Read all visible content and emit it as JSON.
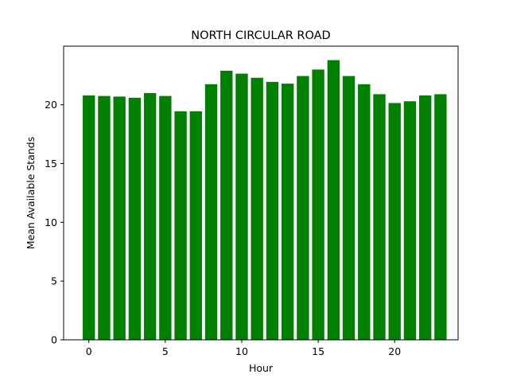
{
  "chart_data": {
    "type": "bar",
    "title": "NORTH CIRCULAR ROAD",
    "xlabel": "Hour",
    "ylabel": "Mean Available Stands",
    "categories": [
      0,
      1,
      2,
      3,
      4,
      5,
      6,
      7,
      8,
      9,
      10,
      11,
      12,
      13,
      14,
      15,
      16,
      17,
      18,
      19,
      20,
      21,
      22,
      23
    ],
    "values": [
      20.8,
      20.75,
      20.7,
      20.6,
      21.0,
      20.75,
      19.45,
      19.45,
      21.75,
      22.9,
      22.65,
      22.3,
      21.95,
      21.8,
      22.45,
      23.0,
      23.8,
      22.45,
      21.75,
      20.9,
      20.15,
      20.3,
      20.8,
      20.9
    ],
    "xticks": [
      0,
      5,
      10,
      15,
      20
    ],
    "yticks": [
      0,
      5,
      10,
      15,
      20
    ],
    "xlim": [
      -1.65,
      24.15
    ],
    "ylim": [
      0,
      24.99
    ],
    "bar_color": "#008000",
    "grid": false,
    "legend": "none"
  }
}
